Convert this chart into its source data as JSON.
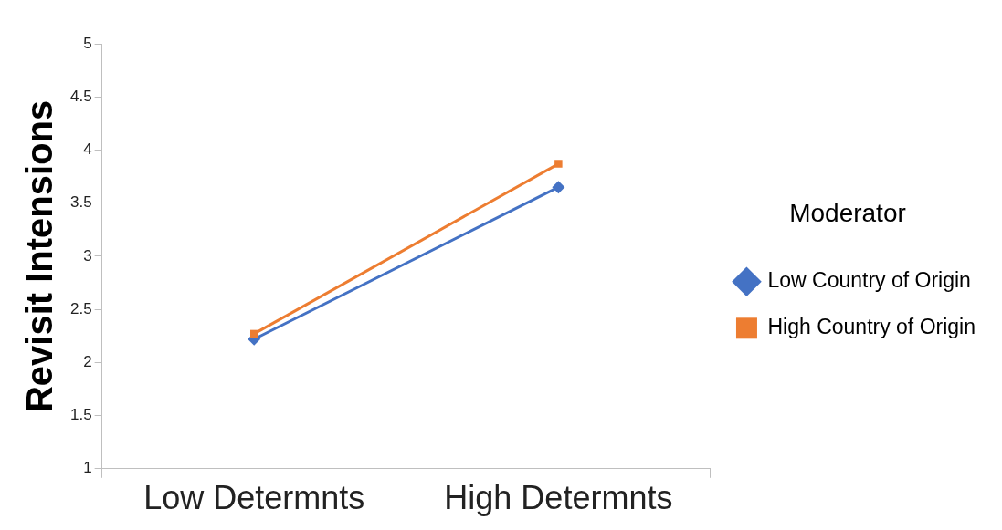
{
  "chart_data": {
    "type": "line",
    "ylabel": "Revisit Intensions",
    "legend_title": "Moderator",
    "categories": [
      "Low Determnts",
      "High Determnts"
    ],
    "series": [
      {
        "name": "Low Country of Origin",
        "color": "#4472c4",
        "values": [
          2.22,
          3.65
        ],
        "marker": "diamond"
      },
      {
        "name": "High Country of Origin",
        "color": "#ed7d31",
        "values": [
          2.27,
          3.87
        ],
        "marker": "square"
      }
    ],
    "ylim": [
      1,
      5
    ],
    "yticks": [
      1,
      1.5,
      2,
      2.5,
      3,
      3.5,
      4,
      4.5,
      5
    ],
    "grid": false,
    "legend": "right"
  }
}
